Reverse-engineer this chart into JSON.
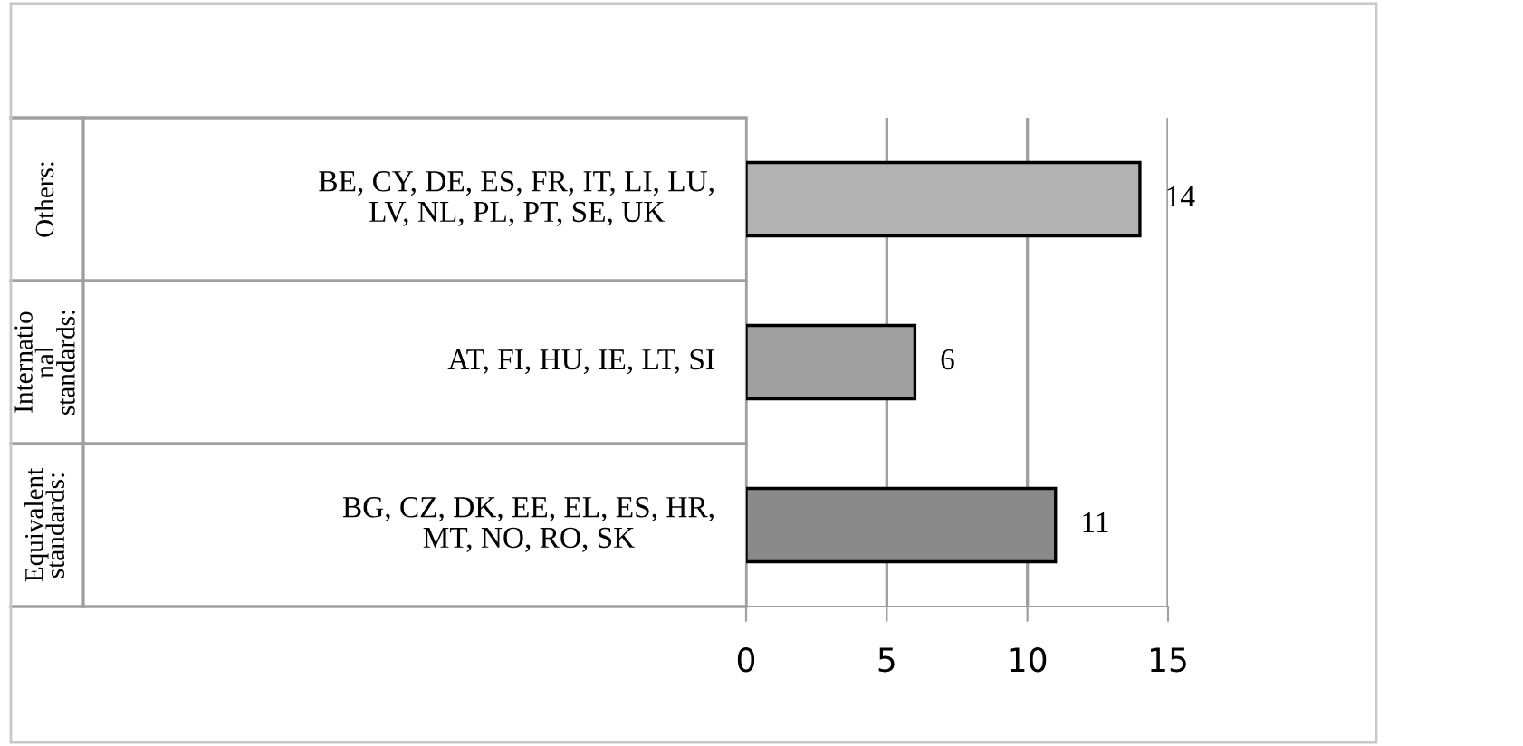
{
  "chart_data": {
    "type": "bar",
    "orientation": "horizontal",
    "categories": [
      "BE, CY, DE, ES, FR, IT, LI, LU,\nLV, NL, PL, PT, SE, UK",
      "AT, FI, HU, IE, LT, SI",
      "BG, CZ, DK, EE, EL, ES, HR,\nMT, NO, RO, SK"
    ],
    "values": [
      14,
      6,
      11
    ],
    "colors": [
      "#b2b2b2",
      "#a0a0a0",
      "#8a8a8a"
    ],
    "annotations": [
      "Others:",
      "Internatio\nnal\nstandards:",
      "Equivalent\nstandards:"
    ],
    "xlim": [
      0,
      15
    ],
    "xticks": [
      0,
      5,
      10,
      15
    ],
    "grid": "x",
    "data_labels": true
  }
}
